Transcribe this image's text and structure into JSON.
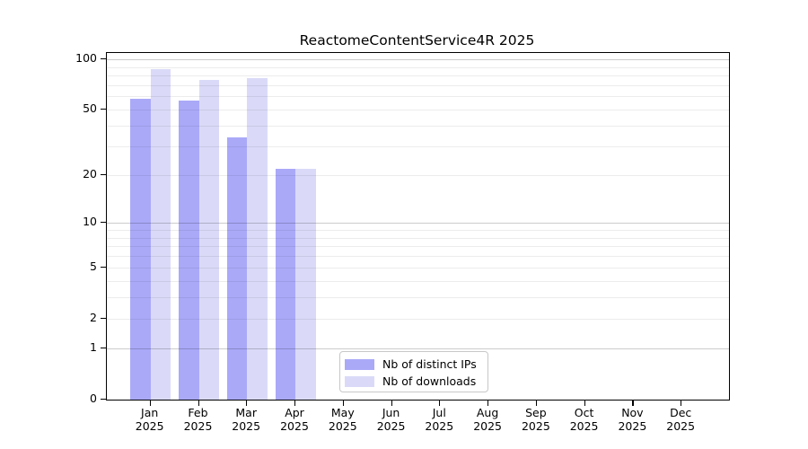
{
  "chart_data": {
    "type": "bar",
    "title": "ReactomeContentService4R 2025",
    "year": "2025",
    "categories": [
      "Jan",
      "Feb",
      "Mar",
      "Apr",
      "May",
      "Jun",
      "Jul",
      "Aug",
      "Sep",
      "Oct",
      "Nov",
      "Dec"
    ],
    "series": [
      {
        "name": "Nb of distinct IPs",
        "color": "#aaa9f8",
        "values": [
          58,
          57,
          34,
          22,
          0,
          0,
          0,
          0,
          0,
          0,
          0,
          0
        ]
      },
      {
        "name": "Nb of downloads",
        "color": "#dadaf8",
        "values": [
          87,
          75,
          77,
          22,
          0,
          0,
          0,
          0,
          0,
          0,
          0,
          0
        ]
      }
    ],
    "y_scale": "log1p",
    "y_ticks": [
      0,
      1,
      2,
      5,
      10,
      20,
      50,
      100
    ],
    "y_major_gridlines": [
      1,
      10,
      100
    ],
    "y_minor_gridlines": [
      2,
      3,
      4,
      5,
      6,
      7,
      8,
      9,
      20,
      30,
      40,
      50,
      60,
      70,
      80,
      90
    ],
    "ylim": [
      0,
      110
    ],
    "grid": "horizontal",
    "legend_position": "bottom-center",
    "xlabel": "",
    "ylabel": ""
  }
}
